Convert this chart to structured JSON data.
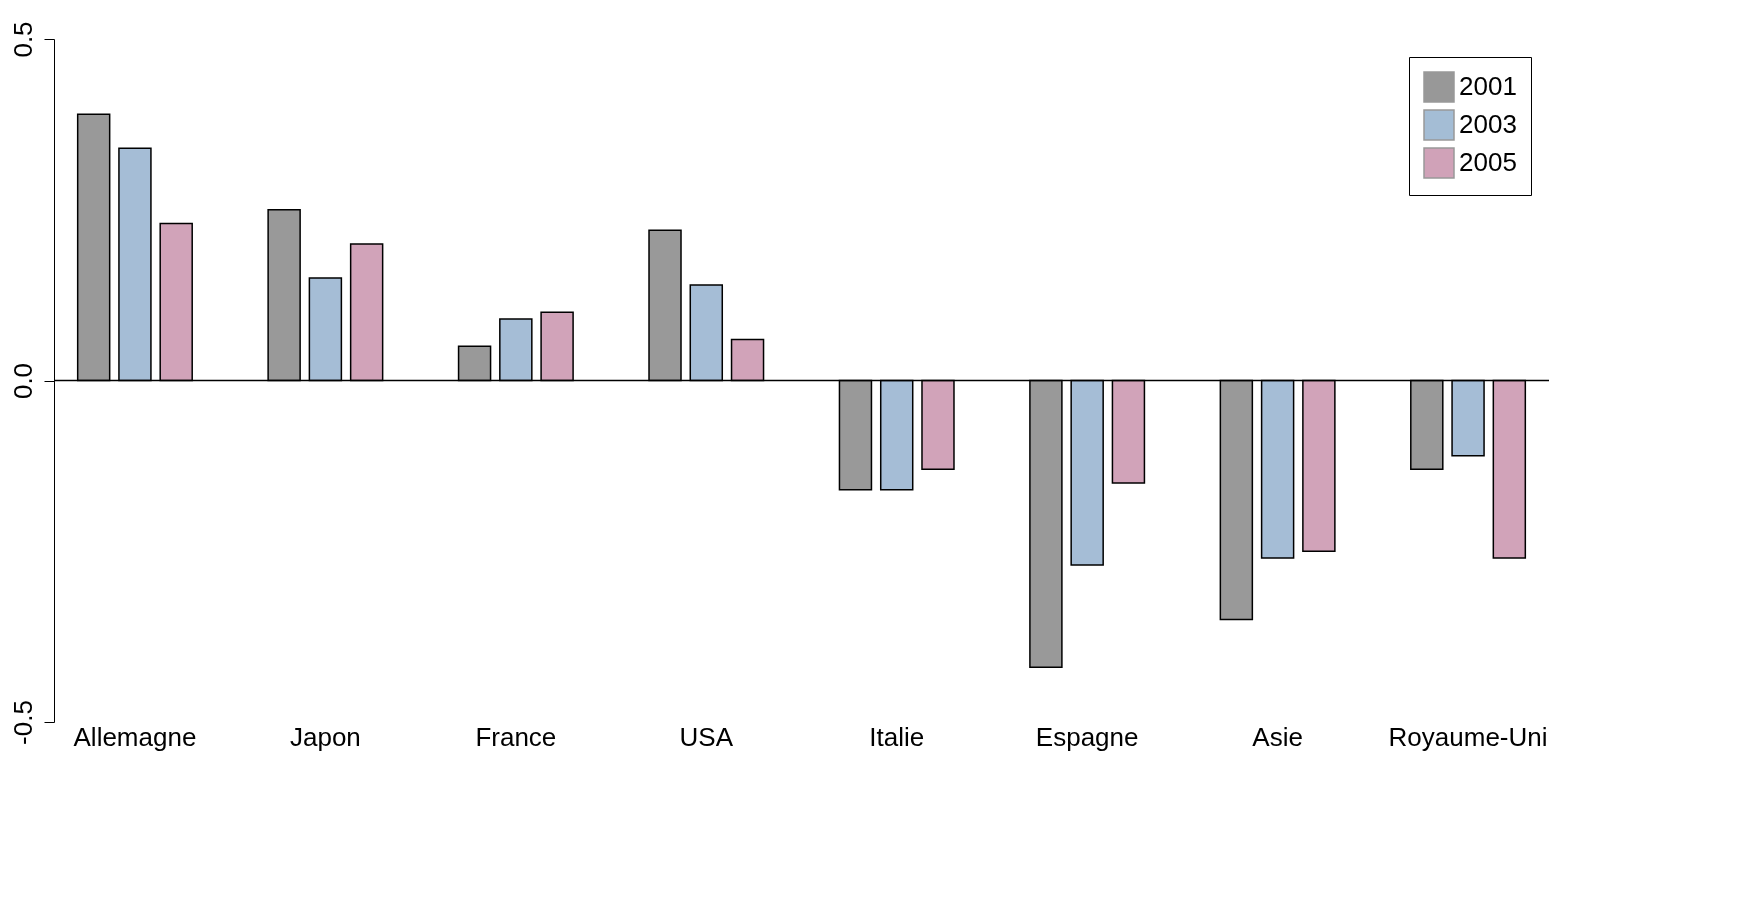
{
  "chart_data": {
    "type": "bar",
    "categories": [
      "Allemagne",
      "Japon",
      "France",
      "USA",
      "Italie",
      "Espagne",
      "Asie",
      "Royaume-Uni"
    ],
    "series": [
      {
        "name": "2001",
        "color": "#000000",
        "values": [
          0.39,
          0.25,
          0.05,
          0.22,
          -0.16,
          -0.42,
          -0.35,
          -0.13
        ]
      },
      {
        "name": "2003",
        "color": "#1f5b99",
        "values": [
          0.34,
          0.15,
          0.09,
          0.14,
          -0.16,
          -0.27,
          -0.26,
          -0.11
        ]
      },
      {
        "name": "2005",
        "color": "#8b1a4f",
        "values": [
          0.23,
          0.2,
          0.1,
          0.06,
          -0.13,
          -0.15,
          -0.25,
          -0.26
        ]
      }
    ],
    "ylim": [
      -0.5,
      0.5
    ],
    "yticks": [
      {
        "value": -0.5,
        "label": "-0.5"
      },
      {
        "value": 0,
        "label": "0.0"
      },
      {
        "value": 0.5,
        "label": "0.5"
      }
    ],
    "ref_lines": [
      {
        "axis": "y",
        "value": 0
      }
    ],
    "grid": false,
    "legend": "top right"
  }
}
